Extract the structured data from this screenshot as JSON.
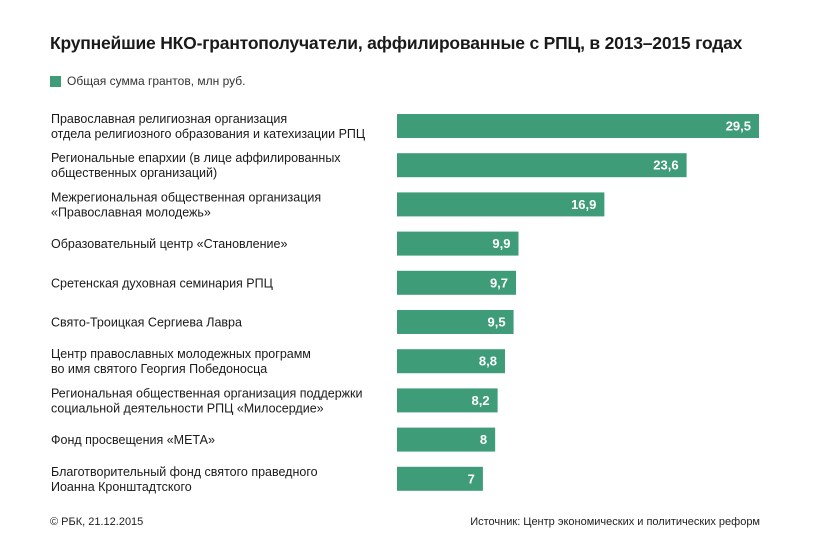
{
  "title": "Крупнейшие НКО-грантополучатели, аффилированные с РПЦ, в 2013–2015 годах",
  "legend_label": "Общая сумма грантов, млн руб.",
  "footer": {
    "copyright": "© РБК, 21.12.2015",
    "source": "Источник: Центр экономических и политических реформ"
  },
  "colors": {
    "bar": "#3f9c78",
    "text": "#1a1a1a",
    "value_text": "#ffffff"
  },
  "chart_data": {
    "type": "bar",
    "orientation": "horizontal",
    "categories": [
      [
        "Православная религиозная организация",
        "отдела религиозного образования и катехизации РПЦ"
      ],
      [
        "Региональные епархии (в лице аффилированных",
        "общественных организаций)"
      ],
      [
        "Межрегиональная общественная организация",
        "«Православная молодежь»"
      ],
      [
        "Образовательный центр «Становление»"
      ],
      [
        "Сретенская духовная семинария РПЦ"
      ],
      [
        "Свято-Троицкая Сергиева Лавра"
      ],
      [
        "Центр православных молодежных программ",
        "во имя святого Георгия Победоносца"
      ],
      [
        "Региональная общественная организация поддержки",
        "социальной деятельности РПЦ «Милосердие»"
      ],
      [
        "Фонд просвещения «МЕТА»"
      ],
      [
        "Благотворительный фонд святого праведного",
        "Иоанна Кронштадтского"
      ]
    ],
    "values": [
      29.5,
      23.6,
      16.9,
      9.9,
      9.7,
      9.5,
      8.8,
      8.2,
      8,
      7
    ],
    "value_labels": [
      "29,5",
      "23,6",
      "16,9",
      "9,9",
      "9,7",
      "9,5",
      "8,8",
      "8,2",
      "8",
      "7"
    ],
    "xlim": [
      0,
      29.5
    ],
    "grid": false,
    "legend_position": "top-left"
  }
}
